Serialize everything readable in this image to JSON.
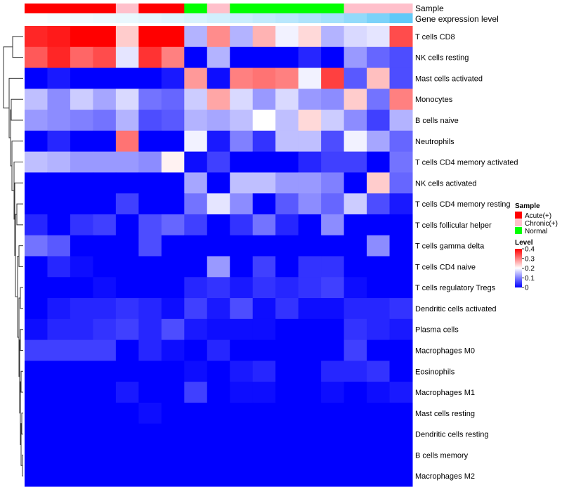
{
  "chart_data": {
    "type": "heatmap",
    "annotation_tracks": [
      "Sample",
      "Gene expression level"
    ],
    "column_annotations": {
      "sample": [
        "Acute(+)",
        "Acute(+)",
        "Acute(+)",
        "Acute(+)",
        "Chronic(+)",
        "Acute(+)",
        "Acute(+)",
        "Normal",
        "Chronic(+)",
        "Normal",
        "Normal",
        "Normal",
        "Normal",
        "Normal",
        "Chronic(+)",
        "Chronic(+)",
        "Chronic(+)"
      ],
      "gene_expression_level": [
        0.02,
        0.05,
        0.08,
        0.1,
        0.12,
        0.15,
        0.18,
        0.22,
        0.26,
        0.3,
        0.35,
        0.4,
        0.46,
        0.52,
        0.62,
        0.75,
        0.9
      ],
      "gene_expression_colors": [
        "#ffffff",
        "#4fc3f7"
      ]
    },
    "rows": [
      "T cells CD8",
      "NK cells resting",
      "Mast cells activated",
      "Monocytes",
      "B cells naive",
      "Neutrophils",
      "T cells CD4 memory activated",
      "NK cells activated",
      "T cells CD4 memory resting",
      "T cells follicular helper",
      "T cells gamma delta",
      "T cells CD4 naive",
      "T cells regulatory  Tregs",
      "Dendritic cells activated",
      "Plasma cells",
      "Macrophages M0",
      "Eosinophils",
      "Macrophages M1",
      "Mast cells resting",
      "Dendritic cells resting",
      "B cells memory",
      "Macrophages M2"
    ],
    "values": [
      [
        0.37,
        0.38,
        0.4,
        0.4,
        0.24,
        0.4,
        0.4,
        0.14,
        0.29,
        0.14,
        0.26,
        0.19,
        0.23,
        0.14,
        0.17,
        0.18,
        0.34
      ],
      [
        0.33,
        0.37,
        0.32,
        0.34,
        0.18,
        0.36,
        0.3,
        0.0,
        0.14,
        0.0,
        0.0,
        0.0,
        0.03,
        0.0,
        0.12,
        0.08,
        0.06
      ],
      [
        0.0,
        0.02,
        0.0,
        0.0,
        0.0,
        0.0,
        0.02,
        0.28,
        0.01,
        0.3,
        0.31,
        0.3,
        0.19,
        0.35,
        0.07,
        0.25,
        0.06
      ],
      [
        0.15,
        0.11,
        0.16,
        0.13,
        0.17,
        0.09,
        0.08,
        0.16,
        0.27,
        0.17,
        0.12,
        0.17,
        0.12,
        0.11,
        0.24,
        0.09,
        0.3
      ],
      [
        0.12,
        0.11,
        0.1,
        0.09,
        0.14,
        0.06,
        0.07,
        0.14,
        0.13,
        0.15,
        0.2,
        0.15,
        0.23,
        0.16,
        0.11,
        0.05,
        0.14
      ],
      [
        0.0,
        0.03,
        0.0,
        0.0,
        0.31,
        0.0,
        0.0,
        0.19,
        0.02,
        0.1,
        0.04,
        0.15,
        0.15,
        0.06,
        0.19,
        0.13,
        0.08
      ],
      [
        0.15,
        0.14,
        0.12,
        0.12,
        0.12,
        0.11,
        0.21,
        0.01,
        0.05,
        0.0,
        0.0,
        0.0,
        0.03,
        0.05,
        0.05,
        0.0,
        0.09
      ],
      [
        0.0,
        0.0,
        0.0,
        0.0,
        0.0,
        0.0,
        0.0,
        0.13,
        0.0,
        0.15,
        0.15,
        0.12,
        0.12,
        0.1,
        0.0,
        0.24,
        0.08
      ],
      [
        0.0,
        0.0,
        0.0,
        0.0,
        0.05,
        0.0,
        0.0,
        0.09,
        0.18,
        0.11,
        0.0,
        0.07,
        0.11,
        0.08,
        0.16,
        0.06,
        0.02
      ],
      [
        0.03,
        0.0,
        0.04,
        0.05,
        0.0,
        0.06,
        0.08,
        0.05,
        0.0,
        0.04,
        0.09,
        0.03,
        0.0,
        0.11,
        0.0,
        0.0,
        0.0
      ],
      [
        0.09,
        0.07,
        0.0,
        0.0,
        0.0,
        0.06,
        0.0,
        0.0,
        0.0,
        0.0,
        0.0,
        0.0,
        0.0,
        0.0,
        0.0,
        0.11,
        0.0
      ],
      [
        0.0,
        0.03,
        0.01,
        0.0,
        0.0,
        0.0,
        0.0,
        0.0,
        0.12,
        0.0,
        0.05,
        0.0,
        0.04,
        0.04,
        0.0,
        0.0,
        0.0
      ],
      [
        0.0,
        0.0,
        0.0,
        0.01,
        0.0,
        0.0,
        0.0,
        0.03,
        0.04,
        0.02,
        0.04,
        0.03,
        0.04,
        0.05,
        0.01,
        0.0,
        0.0
      ],
      [
        0.0,
        0.02,
        0.03,
        0.03,
        0.04,
        0.03,
        0.01,
        0.05,
        0.02,
        0.06,
        0.01,
        0.04,
        0.01,
        0.01,
        0.03,
        0.03,
        0.04
      ],
      [
        0.01,
        0.03,
        0.03,
        0.04,
        0.05,
        0.03,
        0.06,
        0.02,
        0.01,
        0.01,
        0.01,
        0.0,
        0.0,
        0.0,
        0.04,
        0.03,
        0.02
      ],
      [
        0.05,
        0.05,
        0.05,
        0.05,
        0.0,
        0.03,
        0.01,
        0.0,
        0.03,
        0.0,
        0.0,
        0.0,
        0.0,
        0.0,
        0.05,
        0.0,
        0.0
      ],
      [
        0.0,
        0.0,
        0.0,
        0.0,
        0.0,
        0.0,
        0.0,
        0.01,
        0.0,
        0.02,
        0.03,
        0.0,
        0.0,
        0.03,
        0.03,
        0.04,
        0.0
      ],
      [
        0.0,
        0.0,
        0.0,
        0.0,
        0.02,
        0.0,
        0.0,
        0.05,
        0.0,
        0.01,
        0.01,
        0.0,
        0.0,
        0.01,
        0.0,
        0.01,
        0.02
      ],
      [
        0.0,
        0.0,
        0.0,
        0.0,
        0.0,
        0.01,
        0.0,
        0.0,
        0.0,
        0.0,
        0.0,
        0.0,
        0.0,
        0.0,
        0.0,
        0.0,
        0.0
      ],
      [
        0.0,
        0.0,
        0.0,
        0.0,
        0.0,
        0.0,
        0.0,
        0.0,
        0.0,
        0.0,
        0.0,
        0.0,
        0.0,
        0.0,
        0.0,
        0.0,
        0.0
      ],
      [
        0.0,
        0.0,
        0.0,
        0.0,
        0.0,
        0.0,
        0.0,
        0.0,
        0.0,
        0.0,
        0.0,
        0.0,
        0.0,
        0.0,
        0.0,
        0.0,
        0.0
      ],
      [
        0.0,
        0.0,
        0.0,
        0.0,
        0.0,
        0.0,
        0.0,
        0.0,
        0.0,
        0.0,
        0.0,
        0.0,
        0.0,
        0.0,
        0.0,
        0.0,
        0.0
      ]
    ],
    "color_scale": {
      "stops": [
        0,
        0.2,
        0.4
      ],
      "colors": [
        "#0000ff",
        "#ffffff",
        "#ff0000"
      ]
    },
    "legend": {
      "placement": "right",
      "sample_title": "Sample",
      "sample_entries": [
        {
          "label": "Acute(+)",
          "color": "#ff0000"
        },
        {
          "label": "Chronic(+)",
          "color": "#ffc0cb"
        },
        {
          "label": "Normal",
          "color": "#00ff00"
        }
      ],
      "level_title": "Level",
      "level_ticks": [
        "0",
        "0.1",
        "0.2",
        "0.3",
        "0.4"
      ],
      "level_tick_values": [
        0,
        0.1,
        0.2,
        0.3,
        0.4
      ]
    },
    "row_dendrogram": true
  }
}
